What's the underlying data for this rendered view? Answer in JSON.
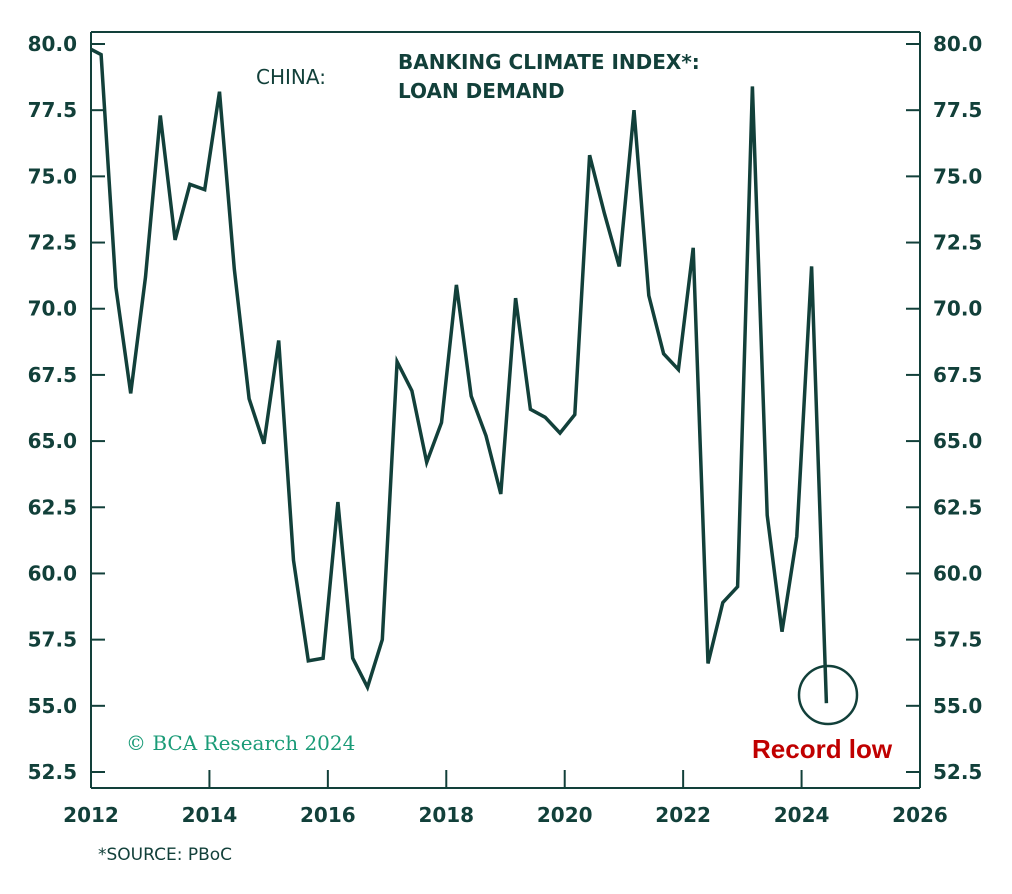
{
  "chart_data": {
    "type": "line",
    "country": "CHINA:",
    "title": "BANKING CLIMATE INDEX*:",
    "subtitle": "LOAN DEMAND",
    "source": "*SOURCE: PBoC",
    "copyright": "© BCA Research 2024",
    "annotation": "Record low",
    "xlim": [
      2012,
      2026
    ],
    "ylim": [
      52.5,
      80.0
    ],
    "x_ticks": [
      "2012",
      "2014",
      "2016",
      "2018",
      "2020",
      "2022",
      "2024",
      "2026"
    ],
    "y_ticks_left": [
      "80.0",
      "77.5",
      "75.0",
      "72.5",
      "70.0",
      "67.5",
      "65.0",
      "62.5",
      "60.0",
      "57.5",
      "55.0",
      "52.5"
    ],
    "y_ticks_right": [
      "80.0",
      "77.5",
      "75.0",
      "72.5",
      "70.0",
      "67.5",
      "65.0",
      "62.5",
      "60.0",
      "57.5",
      "55.0",
      "52.5"
    ],
    "series": [
      {
        "name": "Loan Demand Index",
        "x": [
          2012.0,
          2012.17,
          2012.42,
          2012.67,
          2012.92,
          2013.17,
          2013.42,
          2013.67,
          2013.92,
          2014.17,
          2014.42,
          2014.67,
          2014.92,
          2015.17,
          2015.42,
          2015.67,
          2015.92,
          2016.17,
          2016.42,
          2016.67,
          2016.92,
          2017.17,
          2017.42,
          2017.67,
          2017.92,
          2018.17,
          2018.42,
          2018.67,
          2018.92,
          2019.17,
          2019.42,
          2019.67,
          2019.92,
          2020.17,
          2020.42,
          2020.67,
          2020.92,
          2021.17,
          2021.42,
          2021.67,
          2021.92,
          2022.17,
          2022.42,
          2022.67,
          2022.92,
          2023.17,
          2023.42,
          2023.67,
          2023.92,
          2024.17,
          2024.42
        ],
        "values": [
          79.8,
          79.6,
          70.8,
          66.8,
          71.2,
          77.3,
          72.6,
          74.7,
          74.5,
          78.2,
          71.5,
          66.6,
          64.9,
          68.8,
          60.5,
          56.7,
          56.8,
          62.7,
          56.8,
          55.7,
          57.5,
          68.0,
          66.9,
          64.2,
          65.7,
          70.9,
          66.7,
          65.2,
          63.0,
          70.4,
          66.2,
          65.9,
          65.3,
          66.0,
          75.8,
          73.6,
          71.6,
          77.5,
          70.5,
          68.3,
          67.7,
          72.3,
          56.6,
          58.9,
          59.5,
          78.4,
          62.2,
          57.8,
          61.4,
          71.6,
          55.1
        ]
      }
    ],
    "colors": {
      "line": "#12403a",
      "axis": "#12403a",
      "annotation": "#c00000",
      "copyright": "#1a9b77"
    }
  }
}
